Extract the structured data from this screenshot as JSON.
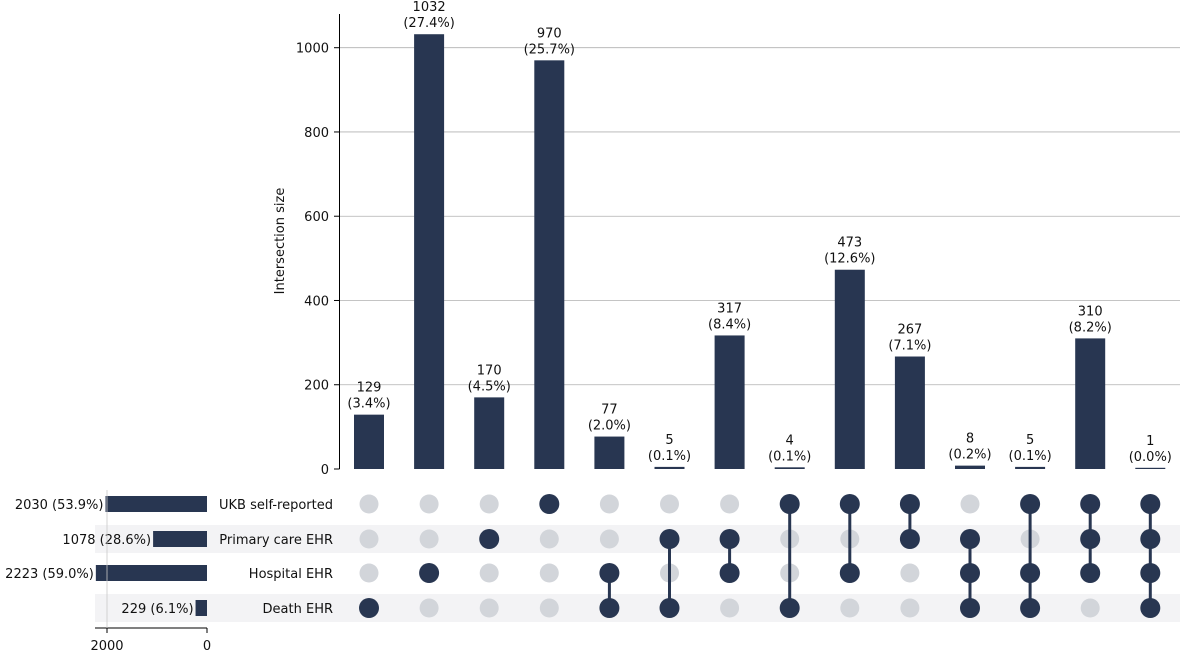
{
  "chart_data": {
    "type": "upset",
    "ylabel": "Intersection size",
    "ylim": [
      0,
      1080
    ],
    "yticks": [
      0,
      200,
      400,
      600,
      800,
      1000
    ],
    "grid": true,
    "sets": [
      {
        "name": "UKB self-reported",
        "size": 2030,
        "label": "2030 (53.9%)"
      },
      {
        "name": "Primary care EHR",
        "size": 1078,
        "label": "1078 (28.6%)"
      },
      {
        "name": "Hospital EHR",
        "size": 2223,
        "label": "2223 (59.0%)"
      },
      {
        "name": "Death EHR",
        "size": 229,
        "label": "229 (6.1%)"
      }
    ],
    "set_size_axis": {
      "ticks": [
        2000,
        0
      ],
      "max": 2223
    },
    "intersections": [
      {
        "value": 129,
        "label": "129",
        "pct": "(3.4%)",
        "members": [
          3
        ]
      },
      {
        "value": 1032,
        "label": "1032",
        "pct": "(27.4%)",
        "members": [
          2
        ]
      },
      {
        "value": 170,
        "label": "170",
        "pct": "(4.5%)",
        "members": [
          1
        ]
      },
      {
        "value": 970,
        "label": "970",
        "pct": "(25.7%)",
        "members": [
          0
        ]
      },
      {
        "value": 77,
        "label": "77",
        "pct": "(2.0%)",
        "members": [
          2,
          3
        ]
      },
      {
        "value": 5,
        "label": "5",
        "pct": "(0.1%)",
        "members": [
          1,
          3
        ]
      },
      {
        "value": 317,
        "label": "317",
        "pct": "(8.4%)",
        "members": [
          1,
          2
        ]
      },
      {
        "value": 4,
        "label": "4",
        "pct": "(0.1%)",
        "members": [
          0,
          3
        ]
      },
      {
        "value": 473,
        "label": "473",
        "pct": "(12.6%)",
        "members": [
          0,
          2
        ]
      },
      {
        "value": 267,
        "label": "267",
        "pct": "(7.1%)",
        "members": [
          0,
          1
        ]
      },
      {
        "value": 8,
        "label": "8",
        "pct": "(0.2%)",
        "members": [
          1,
          2,
          3
        ]
      },
      {
        "value": 5,
        "label": "5",
        "pct": "(0.1%)",
        "members": [
          0,
          2,
          3
        ]
      },
      {
        "value": 310,
        "label": "310",
        "pct": "(8.2%)",
        "members": [
          0,
          1,
          2
        ]
      },
      {
        "value": 1,
        "label": "1",
        "pct": "(0.0%)",
        "members": [
          0,
          1,
          2,
          3
        ]
      }
    ],
    "colors": {
      "bar": "#283651",
      "dot_active": "#283651",
      "dot_inactive": "#d2d5da",
      "stripe": "#f3f3f5",
      "grid": "#b0b0b0"
    }
  }
}
